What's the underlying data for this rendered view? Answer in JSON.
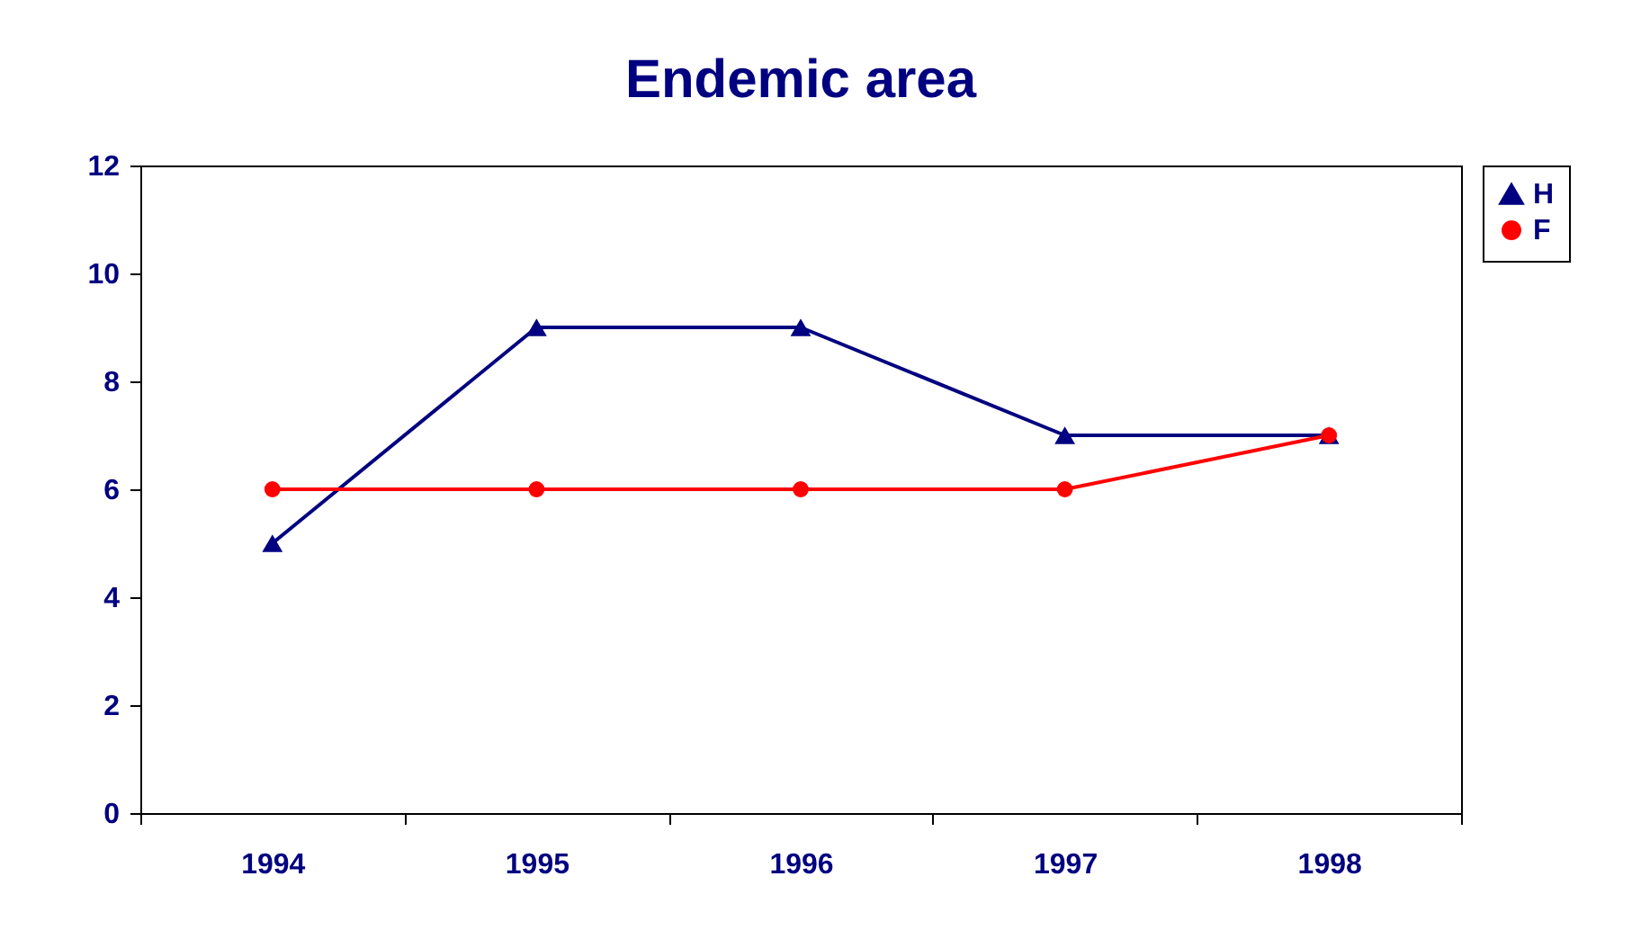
{
  "chart_data": {
    "type": "line",
    "title": "Endemic area",
    "categories": [
      "1994",
      "1995",
      "1996",
      "1997",
      "1998"
    ],
    "series": [
      {
        "name": "H",
        "color": "#000080",
        "marker": "triangle",
        "values": [
          5,
          9,
          9,
          7,
          7
        ]
      },
      {
        "name": "F",
        "color": "#ff0000",
        "marker": "circle",
        "values": [
          6,
          6,
          6,
          6,
          7
        ]
      }
    ],
    "ylim": [
      0,
      12
    ],
    "yticks": [
      0,
      2,
      4,
      6,
      8,
      10,
      12
    ],
    "grid": false,
    "legend": "right",
    "line_style": "solid"
  }
}
